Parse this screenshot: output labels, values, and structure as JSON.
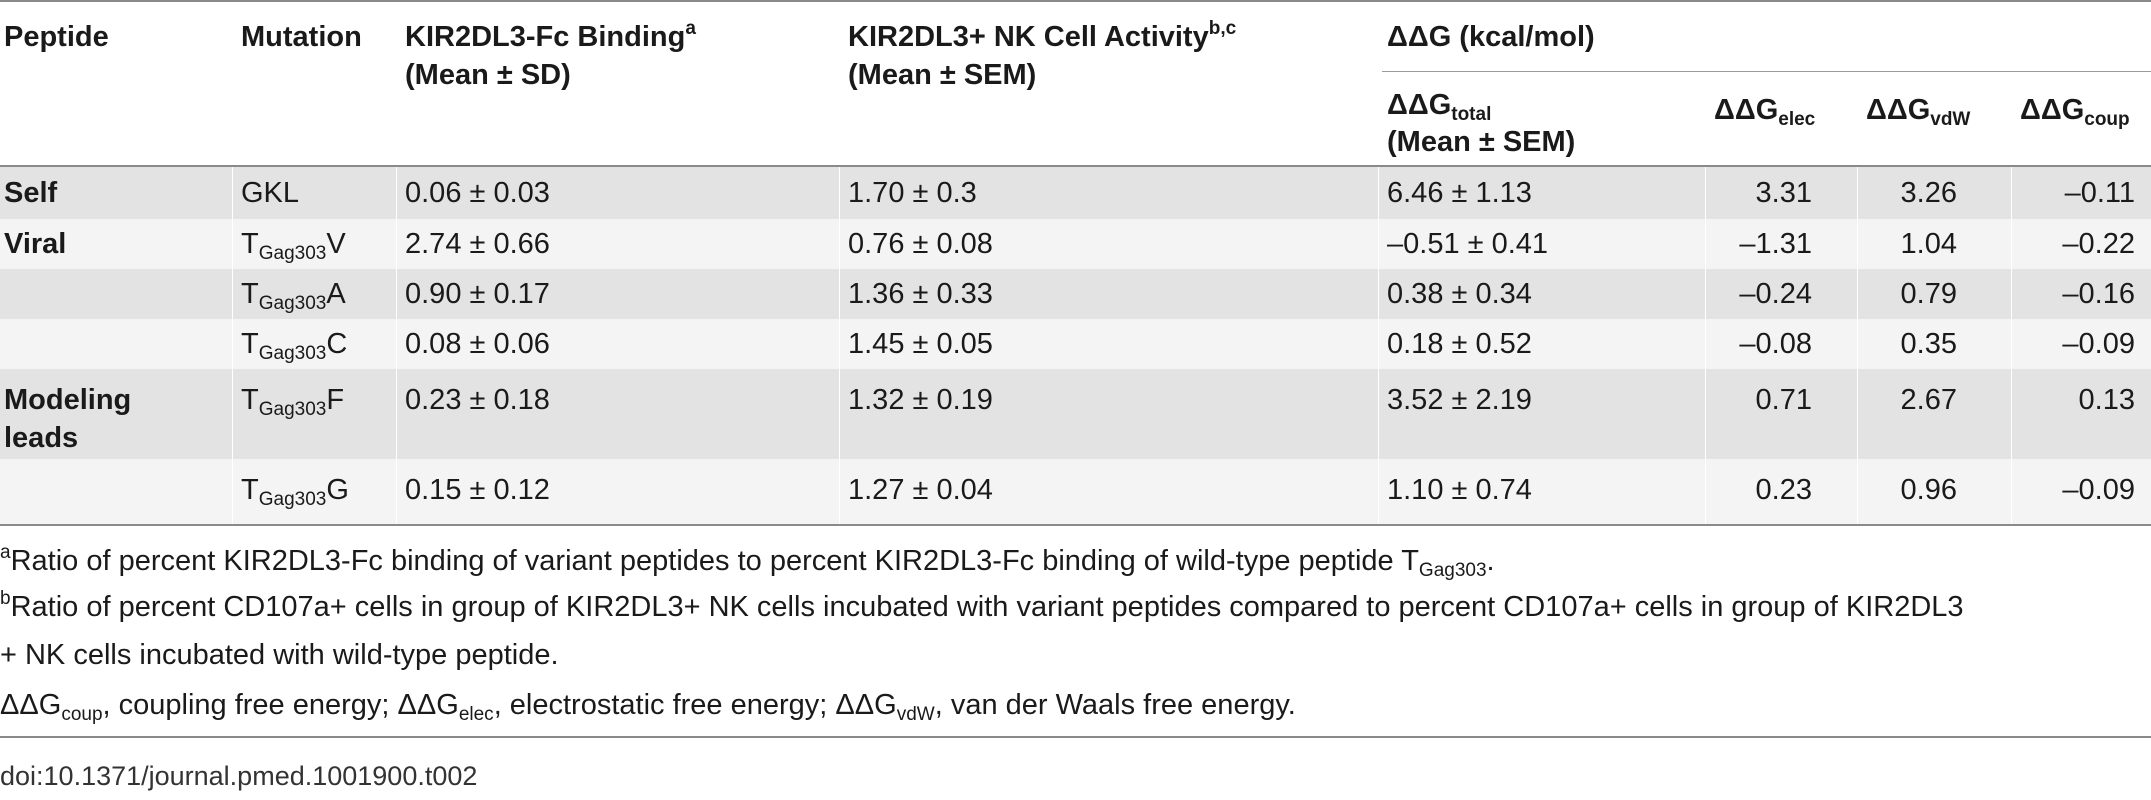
{
  "header": {
    "peptide": "Peptide",
    "mutation": "Mutation",
    "binding": "KIR2DL3-Fc Binding",
    "binding_sup": "a",
    "binding_sub": "(Mean ± SD)",
    "activity": "KIR2DL3+ NK Cell Activity",
    "activity_sup": "b,c",
    "activity_sub": "(Mean ± SEM)",
    "ddg_group": "ΔΔG (kcal/mol)",
    "ddg_total": "ΔΔG",
    "ddg_total_sub": "total",
    "ddg_total_note": "(Mean ± SEM)",
    "ddg_elec": "ΔΔG",
    "ddg_elec_sub": "elec",
    "ddg_vdw": "ΔΔG",
    "ddg_vdw_sub": "vdW",
    "ddg_coup": "ΔΔG",
    "ddg_coup_sub": "coup"
  },
  "rows": [
    {
      "group": "Self",
      "mut_prefix": "",
      "mut_sub": "",
      "mut_suffix": "GKL",
      "binding": "0.06 ± 0.03",
      "activity": "1.70 ± 0.3",
      "total": "6.46 ± 1.13",
      "elec": "3.31",
      "vdw": "3.26",
      "coup": "–0.11"
    },
    {
      "group": "Viral",
      "mut_prefix": "T",
      "mut_sub": "Gag303",
      "mut_suffix": "V",
      "binding": "2.74 ± 0.66",
      "activity": "0.76 ± 0.08",
      "total": "–0.51 ± 0.41",
      "elec": "–1.31",
      "vdw": "1.04",
      "coup": "–0.22"
    },
    {
      "group": "",
      "mut_prefix": "T",
      "mut_sub": "Gag303",
      "mut_suffix": "A",
      "binding": "0.90 ± 0.17",
      "activity": "1.36 ± 0.33",
      "total": "0.38 ± 0.34",
      "elec": "–0.24",
      "vdw": "0.79",
      "coup": "–0.16"
    },
    {
      "group": "",
      "mut_prefix": "T",
      "mut_sub": "Gag303",
      "mut_suffix": "C",
      "binding": "0.08 ± 0.06",
      "activity": "1.45 ± 0.05",
      "total": "0.18 ± 0.52",
      "elec": "–0.08",
      "vdw": "0.35",
      "coup": "–0.09"
    },
    {
      "group": "Modeling",
      "group2": "leads",
      "mut_prefix": "T",
      "mut_sub": "Gag303",
      "mut_suffix": "F",
      "binding": "0.23 ± 0.18",
      "activity": "1.32 ± 0.19",
      "total": "3.52 ± 2.19",
      "elec": "0.71",
      "vdw": "2.67",
      "coup": "0.13"
    },
    {
      "group": "",
      "mut_prefix": "T",
      "mut_sub": "Gag303",
      "mut_suffix": "G",
      "binding": "0.15 ± 0.12",
      "activity": "1.27 ± 0.04",
      "total": "1.10 ± 0.74",
      "elec": "0.23",
      "vdw": "0.96",
      "coup": "–0.09"
    }
  ],
  "footnotes": {
    "a_mark": "a",
    "a_text": "Ratio of percent KIR2DL3-Fc binding of variant peptides to percent KIR2DL3-Fc binding of wild-type peptide T",
    "a_sub": "Gag303",
    "a_end": ".",
    "b_mark": "b",
    "b_text1": "Ratio of percent CD107a+ cells in group of KIR2DL3+ NK cells incubated with variant peptides compared to percent CD107a+ cells in group of KIR2DL3",
    "b_text2": "+ NK cells incubated with wild-type peptide.",
    "abbr_1": "ΔΔG",
    "abbr_1_sub": "coup",
    "abbr_1_text": ", coupling free energy; ΔΔG",
    "abbr_2_sub": "elec",
    "abbr_2_text": ", electrostatic free energy; ΔΔG",
    "abbr_3_sub": "vdW",
    "abbr_3_text": ", van der Waals free energy."
  },
  "doi": "doi:10.1371/journal.pmed.1001900.t002"
}
